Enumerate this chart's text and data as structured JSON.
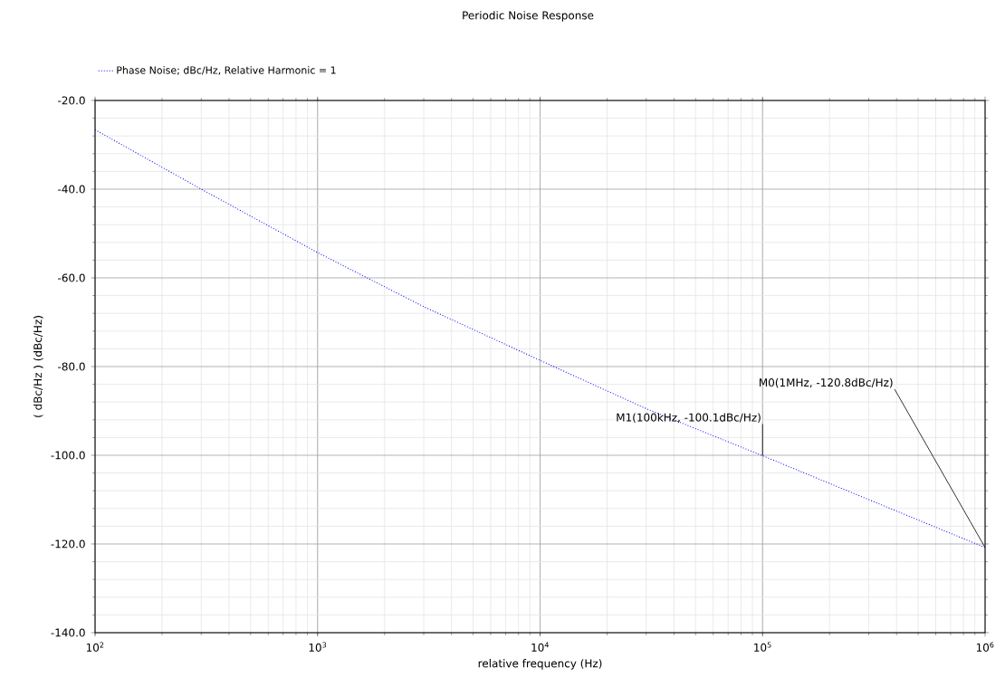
{
  "chart_data": {
    "type": "line",
    "title": "Periodic Noise Response",
    "xlabel": "relative frequency (Hz)",
    "ylabel": "( dBc/Hz ) (dBc/Hz)",
    "x": [
      100,
      300,
      1000,
      3000,
      10000,
      30000,
      100000,
      300000,
      1000000
    ],
    "series": [
      {
        "name": "Phase Noise; dBc/Hz, Relative Harmonic = 1",
        "color": "#0000ff",
        "values": [
          -26.6,
          -40,
          -54.3,
          -66.5,
          -78.6,
          -89.5,
          -100.1,
          -110,
          -120.8
        ]
      }
    ],
    "log": "x",
    "grid": true,
    "legend": "top left",
    "line_style": "dotted",
    "xlim": [
      100,
      1000000
    ],
    "xticks": [
      {
        "value": 100,
        "label": "10$^{2}$"
      },
      {
        "value": 1000,
        "label": "10$^{3}$"
      },
      {
        "value": 10000,
        "label": "10$^{4}$"
      },
      {
        "value": 100000,
        "label": "10$^{5}$"
      },
      {
        "value": 1000000,
        "label": "10$^{6}$"
      }
    ],
    "ylim": [
      -140,
      -20
    ],
    "yticks": [
      {
        "value": -140,
        "label": "-140.0"
      },
      {
        "value": -120,
        "label": "-120.0"
      },
      {
        "value": -100,
        "label": "-100.0"
      },
      {
        "value": -80,
        "label": "-80.0"
      },
      {
        "value": -60,
        "label": "-60.0"
      },
      {
        "value": -40,
        "label": "-40.0"
      },
      {
        "value": -20,
        "label": "-20.0"
      }
    ],
    "annotations": [
      {
        "text": "M0(1MHz, -120.8dBc/Hz)",
        "x": 1000000,
        "y": -120.8
      },
      {
        "text": "M1(100kHz, -100.1dBc/Hz)",
        "x": 100000,
        "y": -100.1
      }
    ]
  }
}
